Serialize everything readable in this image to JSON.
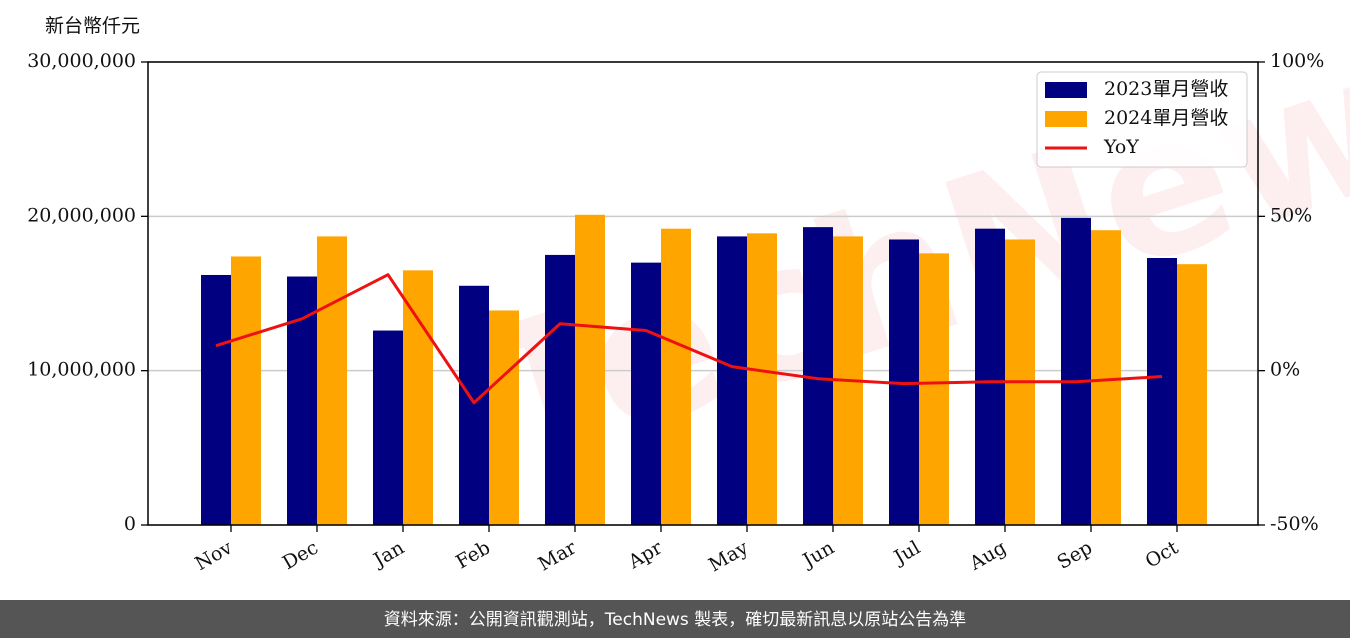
{
  "chart_data": {
    "type": "bar_line",
    "ylabel": "新台幣仟元",
    "watermark": "TechNews",
    "source": "資料來源：公開資訊觀測站，TechNews 製表，確切最新訊息以原站公告為準",
    "categories": [
      "Nov",
      "Dec",
      "Jan",
      "Feb",
      "Mar",
      "Apr",
      "May",
      "Jun",
      "Jul",
      "Aug",
      "Sep",
      "Oct"
    ],
    "series": [
      {
        "name": "2023單月營收",
        "color": "#000080",
        "type": "bar",
        "values": [
          16200000,
          16100000,
          12600000,
          15500000,
          17500000,
          17000000,
          18700000,
          19300000,
          18500000,
          19200000,
          19900000,
          17300000
        ]
      },
      {
        "name": "2024單月營收",
        "color": "#ffa500",
        "type": "bar",
        "values": [
          17400000,
          18700000,
          16500000,
          13900000,
          20100000,
          19200000,
          18900000,
          18700000,
          17600000,
          18500000,
          19100000,
          16900000
        ]
      },
      {
        "name": "YoY",
        "color": "#ee1111",
        "type": "line",
        "axis": "y2",
        "values": [
          8.1,
          16.8,
          31.1,
          -10.4,
          15.2,
          13.0,
          1.3,
          -2.6,
          -4.2,
          -3.6,
          -3.6,
          -1.9
        ]
      }
    ],
    "ylim": [
      0,
      30000000
    ],
    "yticks": [
      0,
      {
        "value": 10000000,
        "label": "10,000,000"
      },
      {
        "value": 20000000,
        "label": "20,000,000"
      },
      {
        "value": 30000000,
        "label": "30,000,000"
      }
    ],
    "y2lim": [
      -50,
      100
    ],
    "y2ticks": [
      {
        "value": -50,
        "label": "-50%"
      },
      {
        "value": 0,
        "label": "0%"
      },
      {
        "value": 50,
        "label": "50%"
      },
      {
        "value": 100,
        "label": "100%"
      }
    ],
    "grid": true,
    "legend": "upper right"
  }
}
